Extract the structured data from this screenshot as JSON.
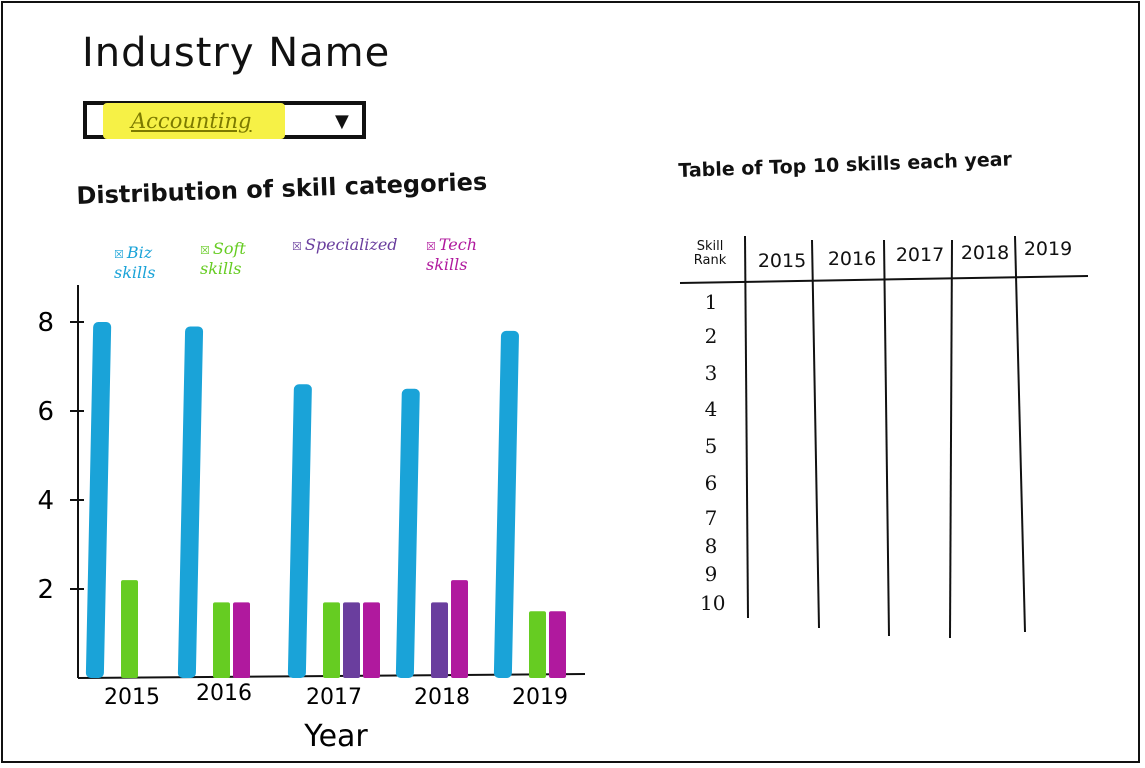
{
  "page": {
    "title": "Industry Name"
  },
  "industry_select": {
    "selected": "Accounting",
    "caret": "▼"
  },
  "chart_data": {
    "type": "bar",
    "title": "Distribution of skill categories",
    "xlabel": "Year",
    "ylabel": "",
    "ylim": [
      0,
      8.6
    ],
    "yticks": [
      "2",
      "4",
      "6",
      "8"
    ],
    "categories": [
      "2015",
      "2016",
      "2017",
      "2018",
      "2019"
    ],
    "legend": "top",
    "series": [
      {
        "name": "Biz skills",
        "color": "#1aa3d8",
        "values": [
          8.0,
          7.9,
          6.6,
          6.5,
          7.8
        ]
      },
      {
        "name": "Soft skills",
        "color": "#66cc22",
        "values": [
          2.2,
          1.7,
          1.7,
          0,
          1.5
        ]
      },
      {
        "name": "Specialized",
        "color": "#6a3e9e",
        "values": [
          0,
          0,
          1.7,
          1.7,
          0
        ]
      },
      {
        "name": "Tech skills",
        "color": "#b0199e",
        "values": [
          0,
          1.7,
          1.7,
          2.2,
          1.5
        ]
      }
    ]
  },
  "skills_table": {
    "title": "Table of Top 10 skills each year",
    "rank_header": "Skill Rank",
    "columns": [
      "2015",
      "2016",
      "2017",
      "2018",
      "2019"
    ],
    "ranks": [
      "1",
      "2",
      "3",
      "4",
      "5",
      "6",
      "7",
      "8",
      "9",
      "10"
    ]
  },
  "legend_labels": {
    "biz": "Biz\nskills",
    "soft": "Soft\nskills",
    "specialized": "Specialized",
    "tech": "Tech\nskills"
  },
  "icons": {
    "legend_swatch": "checkbox-icon"
  }
}
